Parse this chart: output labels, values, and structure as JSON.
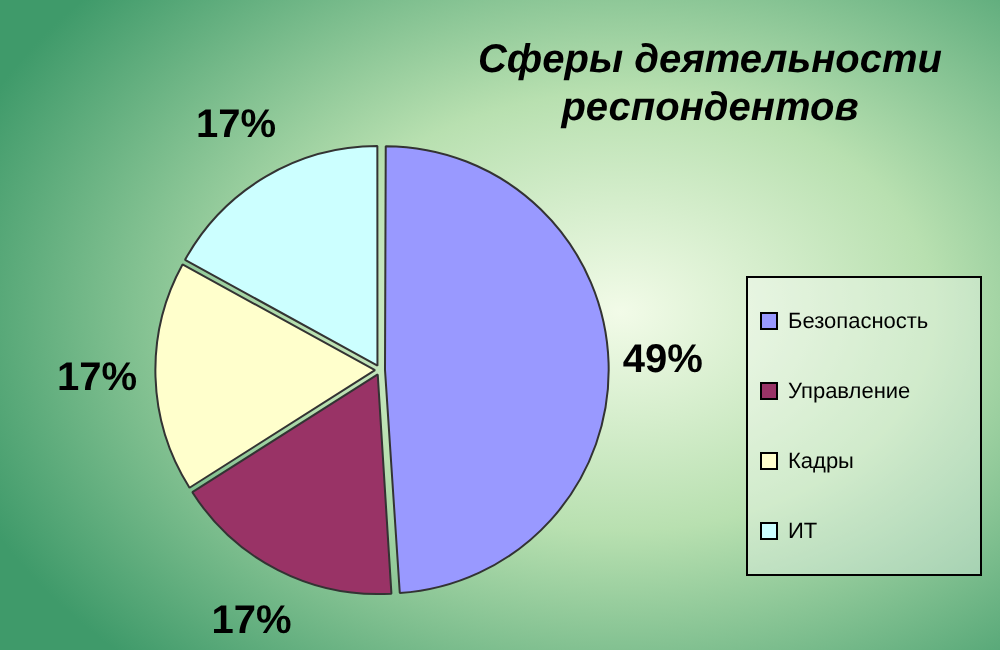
{
  "chart_data": {
    "type": "pie",
    "title": "Сферы деятельности респондентов",
    "categories": [
      "Безопасность",
      "Управление",
      "Кадры",
      "ИТ"
    ],
    "values": [
      49,
      17,
      17,
      17
    ],
    "value_labels": [
      "49%",
      "17%",
      "17%",
      "17%"
    ],
    "colors": [
      "#9999ff",
      "#993366",
      "#ffffcc",
      "#ccffff"
    ],
    "legend": "right"
  }
}
